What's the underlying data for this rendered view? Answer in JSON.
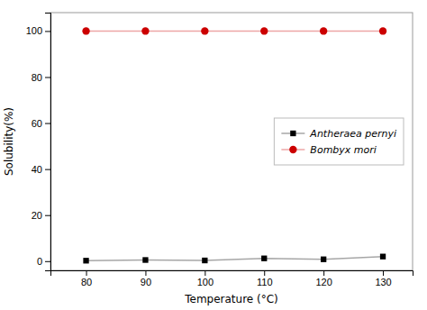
{
  "chart_data": {
    "type": "line",
    "x_label": "Temperature (°C)",
    "y_label": "Solubility(%)",
    "x": [
      80,
      90,
      100,
      110,
      120,
      130
    ],
    "xlim": [
      74,
      135
    ],
    "ylim": [
      -4,
      108
    ],
    "xticks": [
      80,
      90,
      100,
      110,
      120,
      130
    ],
    "yticks": [
      0,
      20,
      40,
      60,
      80,
      100
    ],
    "legend": "center right",
    "series": [
      {
        "name": "Antheraea pernyi",
        "color": "#000000",
        "marker": "square",
        "line_style": "solid",
        "values": [
          0.2,
          0.5,
          0.3,
          1.2,
          0.8,
          2.0
        ]
      },
      {
        "name": "Bombyx mori",
        "color": "#cc0000",
        "marker": "circle",
        "line_style": "solid",
        "values": [
          100,
          100,
          100,
          100,
          100,
          100
        ]
      }
    ]
  }
}
